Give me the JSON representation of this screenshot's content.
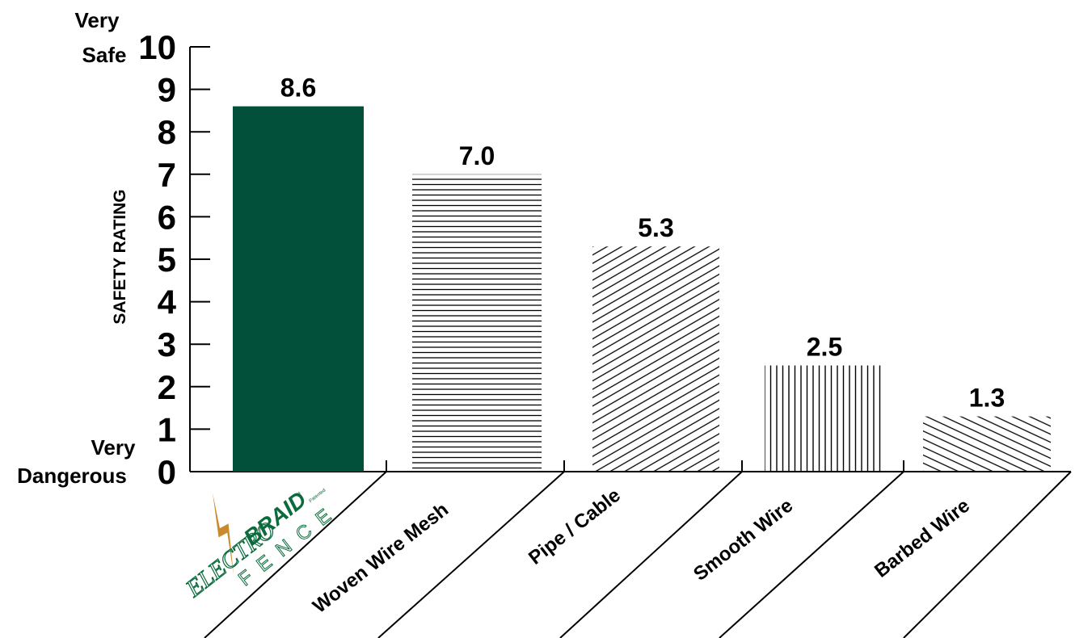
{
  "chart_data": {
    "type": "bar",
    "categories": [
      "ELECTRO BRAID FENCE",
      "Woven Wire Mesh",
      "Pipe / Cable",
      "Smooth Wire",
      "Barbed Wire"
    ],
    "values": [
      8.6,
      7.0,
      5.3,
      2.5,
      1.3
    ],
    "value_labels": [
      "8.6",
      "7.0",
      "5.3",
      "2.5",
      "1.3"
    ],
    "ylabel": "SAFETY RATING",
    "ylim": [
      0,
      10
    ],
    "yticks": [
      0,
      1,
      2,
      3,
      4,
      5,
      6,
      7,
      8,
      9,
      10
    ],
    "ytick_labels": [
      "0",
      "1",
      "2",
      "3",
      "4",
      "5",
      "6",
      "7",
      "8",
      "9",
      "10"
    ],
    "y_top_annotation": [
      "Very",
      "Safe"
    ],
    "y_bottom_annotation": [
      "Very",
      "Dangerous"
    ],
    "grid": false,
    "legend": "none",
    "bar_styles": [
      "solid",
      "horizontal-lines",
      "diagonal-lines",
      "vertical-lines",
      "diagonal-lines-reverse"
    ],
    "colors": {
      "solid_bar": "#03503a",
      "line": "#000000",
      "logo_green": "#0c6b3c",
      "logo_bolt": "#c98a2e"
    }
  },
  "logo": {
    "word1": "ELECTRO",
    "word2": "BRAID",
    "word3": "FENCE",
    "trademark": "™",
    "patented": "Patented"
  }
}
